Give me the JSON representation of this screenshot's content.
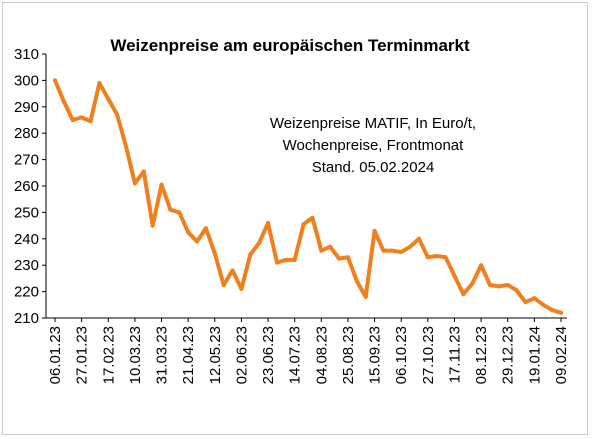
{
  "chart_data": {
    "type": "line",
    "title": "Weizenpreise am europäischen Terminmarkt",
    "annotation": [
      "Weizenpreise MATIF, In Euro/t,",
      "Wochenpreise, Frontmonat",
      "Stand. 05.02.2024"
    ],
    "xlabel": "",
    "ylabel": "",
    "ylim": [
      210,
      310
    ],
    "yticks": [
      210,
      220,
      230,
      240,
      250,
      260,
      270,
      280,
      290,
      300,
      310
    ],
    "x_tick_labels": [
      "06.01.23",
      "27.01.23",
      "17.02.23",
      "10.03.23",
      "31.03.23",
      "21.04.23",
      "12.05.23",
      "02.06.23",
      "23.06.23",
      "14.07.23",
      "04.08.23",
      "25.08.23",
      "15.09.23",
      "06.10.23",
      "27.10.23",
      "17.11.23",
      "08.12.23",
      "29.12.23",
      "19.01.24",
      "09.02.24"
    ],
    "grid": false,
    "legend": "none",
    "series_color": "#F07F1E",
    "series": [
      {
        "values": [
          300,
          292,
          285,
          286,
          284.5,
          299,
          293,
          287,
          275,
          261,
          265.5,
          245,
          260.5,
          251,
          250,
          242.5,
          239,
          244,
          234.5,
          222.5,
          228,
          221,
          234,
          238.5,
          246,
          231,
          232,
          232,
          245.5,
          248,
          235.5,
          237,
          232.5,
          233,
          224,
          218,
          243,
          235.5,
          235.5,
          235,
          237,
          240,
          233,
          233.5,
          233,
          226,
          219,
          223,
          230,
          222.5,
          222,
          222.5,
          220.5,
          216,
          217.5,
          215,
          213,
          212
        ]
      }
    ]
  }
}
